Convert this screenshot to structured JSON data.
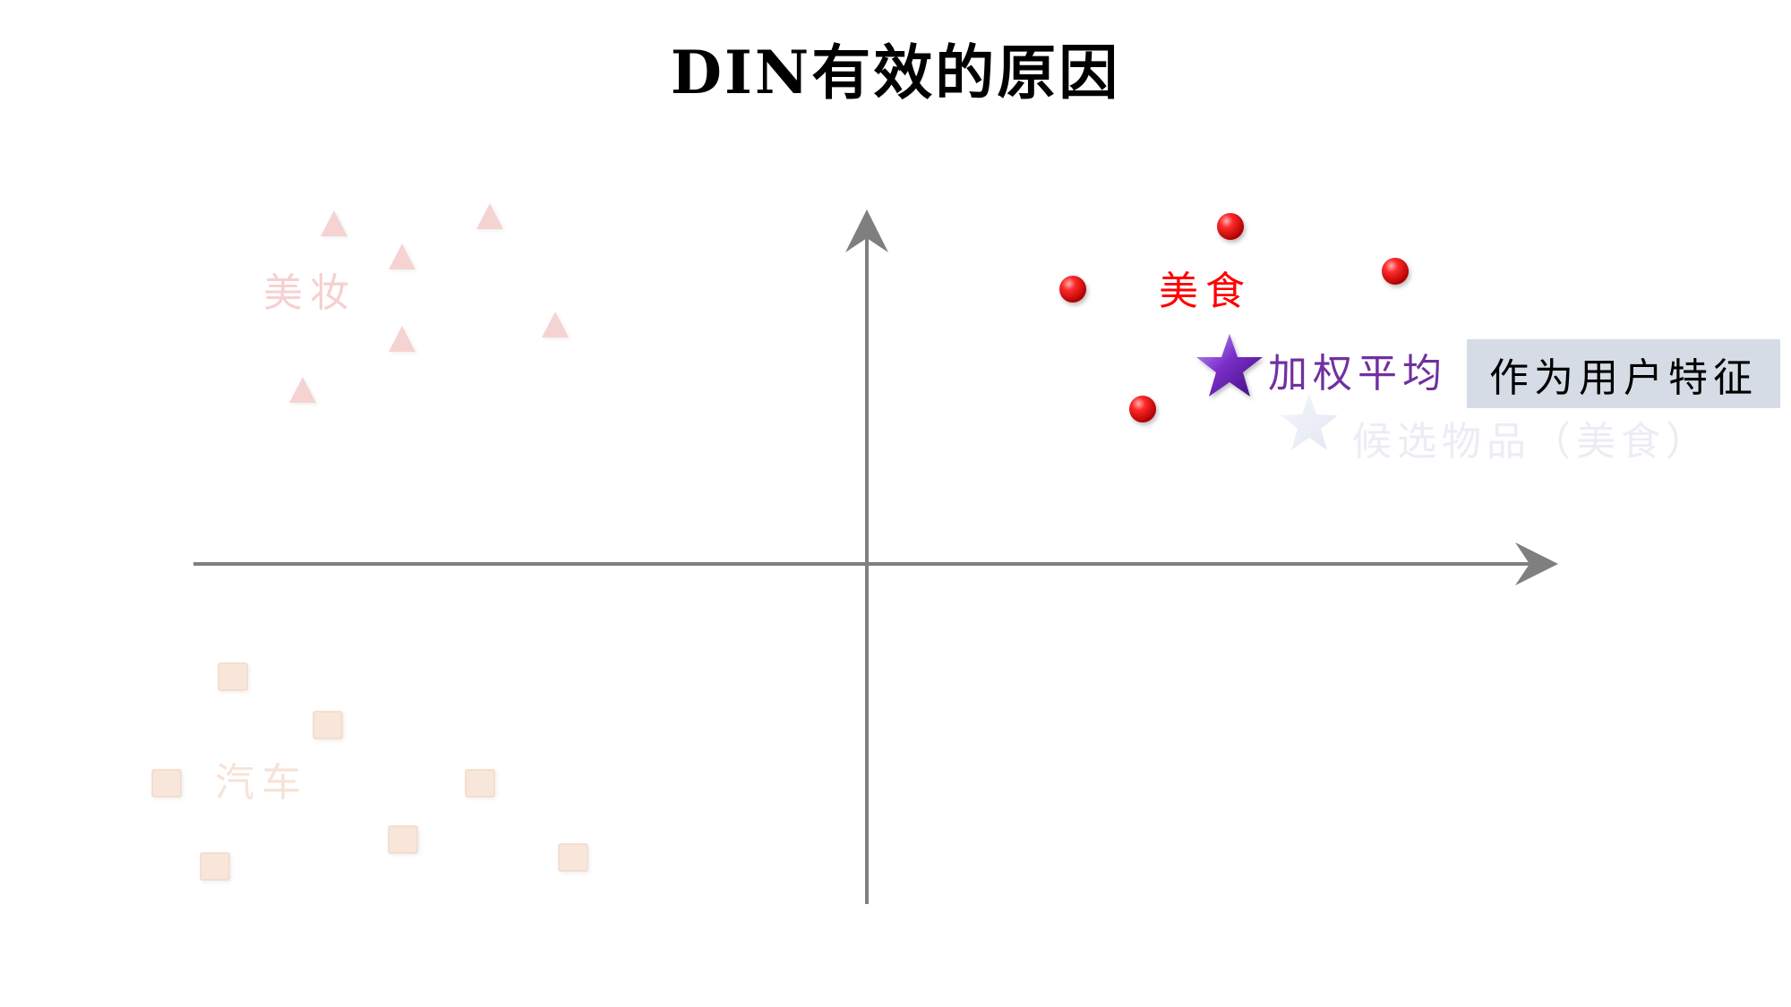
{
  "title": "DIN有效的原因",
  "clusters": {
    "makeup": {
      "label": "美妆",
      "color": "#f6d0d0",
      "marker": "triangle"
    },
    "car": {
      "label": "汽车",
      "color": "#f6e3d6",
      "marker": "square"
    },
    "food": {
      "label": "美食",
      "color": "#ff0000",
      "marker": "red-ball"
    }
  },
  "weighted_average": {
    "label": "加权平均",
    "color": "#7030a0",
    "marker": "purple-star"
  },
  "candidate_item": {
    "label": "候选物品（美食）",
    "color": "#ececf4",
    "marker": "light-star"
  },
  "user_feature": {
    "label": "作为用户特征",
    "background": "#d6dce5"
  },
  "axis_color": "#7f7f7f"
}
